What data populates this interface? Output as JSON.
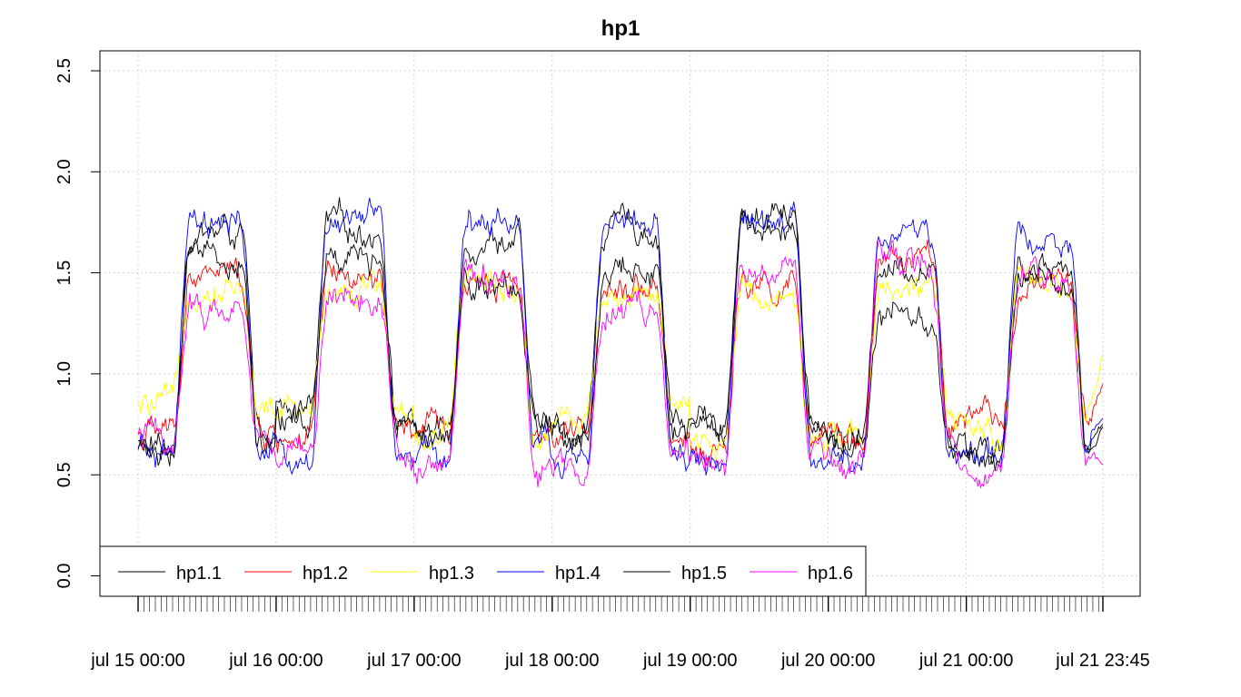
{
  "chart_data": {
    "type": "line",
    "title": "hp1",
    "xlabel": "",
    "ylabel": "",
    "ylim": [
      0,
      2.6
    ],
    "yticks": [
      0.0,
      0.5,
      1.0,
      1.5,
      2.0,
      2.5
    ],
    "ytick_labels": [
      "0.0",
      "0.5",
      "1.0",
      "1.5",
      "2.0",
      "2.5"
    ],
    "x_start": "2024-07-15 00:00",
    "x_end": "2024-07-21 23:45",
    "x_step_minutes": 15,
    "xtick_labels": [
      "jul 15 00:00",
      "jul 16 00:00",
      "jul 17 00:00",
      "jul 18 00:00",
      "jul 19 00:00",
      "jul 20 00:00",
      "jul 21 00:00",
      "jul 21 23:45"
    ],
    "grid": true,
    "legend_position": "bottom-left",
    "series": [
      {
        "name": "hp1.1",
        "color": "#000000",
        "daily_low": [
          0.62,
          0.78,
          0.72,
          0.72,
          0.72,
          0.68,
          0.65
        ],
        "daily_high": [
          1.7,
          1.72,
          1.68,
          1.72,
          1.76,
          1.55,
          1.55
        ],
        "end_value": 0.75
      },
      {
        "name": "hp1.2",
        "color": "#ff0000",
        "daily_low": [
          0.7,
          0.68,
          0.72,
          0.68,
          0.62,
          0.7,
          0.74
        ],
        "daily_high": [
          1.48,
          1.44,
          1.48,
          1.47,
          1.42,
          1.56,
          1.43
        ],
        "end_value": 0.95
      },
      {
        "name": "hp1.3",
        "color": "#ffff00",
        "daily_low": [
          0.82,
          0.8,
          0.7,
          0.8,
          0.62,
          0.72,
          0.7
        ],
        "daily_high": [
          1.44,
          1.45,
          1.46,
          1.42,
          1.42,
          1.45,
          1.4
        ],
        "end_value": 1.1
      },
      {
        "name": "hp1.4",
        "color": "#0000ff",
        "daily_low": [
          0.6,
          0.57,
          0.6,
          0.58,
          0.56,
          0.56,
          0.57
        ],
        "daily_high": [
          1.7,
          1.75,
          1.76,
          1.72,
          1.74,
          1.7,
          1.68
        ],
        "end_value": 0.78
      },
      {
        "name": "hp1.5",
        "color": "#000000",
        "daily_low": [
          0.64,
          0.8,
          0.75,
          0.72,
          0.74,
          0.66,
          0.63
        ],
        "daily_high": [
          1.55,
          1.55,
          1.48,
          1.54,
          1.75,
          1.28,
          1.48
        ],
        "end_value": 0.74
      },
      {
        "name": "hp1.6",
        "color": "#ff00ff",
        "daily_low": [
          0.68,
          0.6,
          0.56,
          0.56,
          0.55,
          0.55,
          0.56
        ],
        "daily_high": [
          1.32,
          1.4,
          1.46,
          1.32,
          1.5,
          1.52,
          1.46
        ],
        "end_value": 0.55
      }
    ]
  }
}
